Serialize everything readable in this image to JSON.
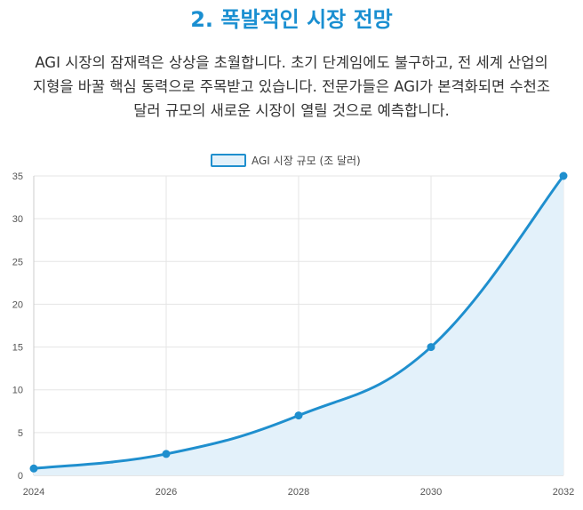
{
  "section": {
    "title": "2. 폭발적인 시장 전망",
    "paragraph_lines": [
      "AGI 시장의 잠재력은 상상을 초월합니다. 초기 단계임에도 불구하고, 전 세계 산업의",
      "지형을 바꿀 핵심 동력으로 주목받고 있습니다. 전문가들은 AGI가 본격화되면 수천조",
      "달러 규모의 새로운 시장이 열릴 것으로 예측합니다."
    ]
  },
  "colors": {
    "accent": "#1a8fd1",
    "line": "#1f8fce",
    "fill": "#e3f1fa",
    "grid": "#e5e5e5"
  },
  "chart_data": {
    "type": "area",
    "legend": "AGI 시장 규모 (조 달러)",
    "x": [
      "2024",
      "2026",
      "2028",
      "2030",
      "2032"
    ],
    "series": [
      {
        "name": "AGI 시장 규모 (조 달러)",
        "values": [
          0.8,
          2.5,
          7,
          15,
          35
        ]
      }
    ],
    "ylim": [
      0,
      35
    ],
    "yticks": [
      0,
      5,
      10,
      15,
      20,
      25,
      30,
      35
    ],
    "grid": true,
    "legend_position": "top-center"
  }
}
